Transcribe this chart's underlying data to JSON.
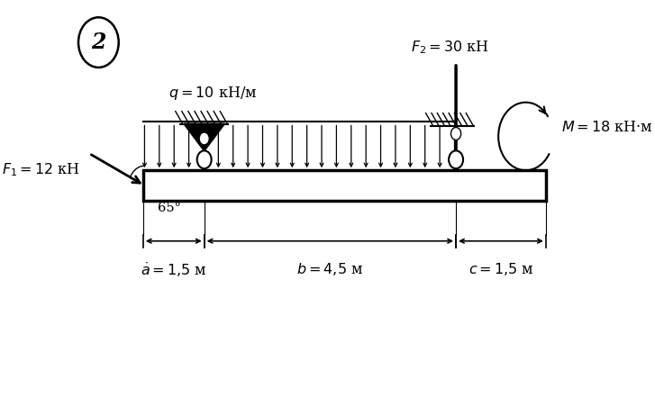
{
  "bg_color": "#ffffff",
  "q_label": "q = 10 кН/м",
  "F2_label": "$F_2 = 30$ кН",
  "M_label": "$M = 18$ кН·м",
  "F1_label": "$F_1 = 12$ кН",
  "a_label": "$\\dot{a} = 1{,}5$ м",
  "b_label": "$b = 4{,}5$ м",
  "c_label": "$c = 1{,}5$ м",
  "angle_label": "65°",
  "circle_label": "2"
}
